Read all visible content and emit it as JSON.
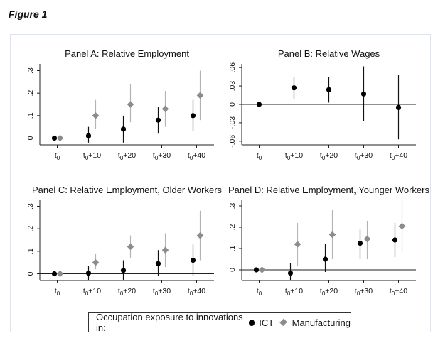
{
  "figure_title": "Figure 1",
  "legend": {
    "prefix": "Occupation exposure to innovations in:",
    "ict_label": "ICT",
    "manufacturing_label": "Manufacturing"
  },
  "colors": {
    "ict": "#000000",
    "manufacturing": "#8c8c8c",
    "ict_ci": "#111111",
    "manufacturing_ci": "#b4b4b4"
  },
  "chart_data": [
    {
      "type": "scatter",
      "title": "Panel A: Relative Employment",
      "categories": [
        "t0",
        "t0+10",
        "t0+20",
        "t0+30",
        "t0+40"
      ],
      "ylim": [
        -0.03,
        0.33
      ],
      "yticks": [
        0,
        0.1,
        0.2,
        0.3
      ],
      "ytick_labels": [
        "0",
        ".1",
        ".2",
        ".3"
      ],
      "series": [
        {
          "name": "ICT",
          "values": [
            0.0,
            0.01,
            0.04,
            0.08,
            0.1
          ],
          "ci_low": [
            0.0,
            -0.02,
            -0.02,
            0.02,
            0.03
          ],
          "ci_high": [
            0.0,
            0.05,
            0.1,
            0.14,
            0.17
          ]
        },
        {
          "name": "Manufacturing",
          "values": [
            0.0,
            0.1,
            0.15,
            0.13,
            0.19
          ],
          "ci_low": [
            0.0,
            0.04,
            0.07,
            0.05,
            0.08
          ],
          "ci_high": [
            0.0,
            0.17,
            0.24,
            0.21,
            0.3
          ]
        }
      ]
    },
    {
      "type": "scatter",
      "title": "Panel B: Relative Wages",
      "categories": [
        "t0",
        "t0+10",
        "t0+20",
        "t0+30",
        "t0+40"
      ],
      "ylim": [
        -0.066,
        0.066
      ],
      "yticks": [
        -0.06,
        -0.03,
        0,
        0.03,
        0.06
      ],
      "ytick_labels": [
        "-.06",
        "-.03",
        "0",
        ".03",
        ".06"
      ],
      "series": [
        {
          "name": "ICT",
          "values": [
            0.0,
            0.027,
            0.024,
            0.017,
            -0.005
          ],
          "ci_low": [
            0.0,
            0.009,
            0.003,
            -0.027,
            -0.057
          ],
          "ci_high": [
            0.0,
            0.044,
            0.045,
            0.062,
            0.048
          ]
        }
      ]
    },
    {
      "type": "scatter",
      "title": "Panel C: Relative Employment, Older Workers",
      "categories": [
        "t0",
        "t0+10",
        "t0+20",
        "t0+30",
        "t0+40"
      ],
      "ylim": [
        -0.03,
        0.33
      ],
      "yticks": [
        0,
        0.1,
        0.2,
        0.3
      ],
      "ytick_labels": [
        "0",
        ".1",
        ".2",
        ".3"
      ],
      "series": [
        {
          "name": "ICT",
          "values": [
            0.0,
            0.003,
            0.015,
            0.045,
            0.06
          ],
          "ci_low": [
            0.0,
            -0.03,
            -0.03,
            -0.01,
            -0.01
          ],
          "ci_high": [
            0.0,
            0.035,
            0.06,
            0.105,
            0.13
          ]
        },
        {
          "name": "Manufacturing",
          "values": [
            0.0,
            0.05,
            0.12,
            0.105,
            0.17
          ],
          "ci_low": [
            0.0,
            0.02,
            0.07,
            0.03,
            0.06
          ],
          "ci_high": [
            0.0,
            0.09,
            0.17,
            0.18,
            0.28
          ]
        }
      ]
    },
    {
      "type": "scatter",
      "title": "Panel D: Relative Employment, Younger Workers",
      "categories": [
        "t0",
        "t0+10",
        "t0+20",
        "t0+30",
        "t0+40"
      ],
      "ylim": [
        -0.05,
        0.33
      ],
      "yticks": [
        0,
        0.1,
        0.2,
        0.3
      ],
      "ytick_labels": [
        "0",
        ".1",
        ".2",
        ".3"
      ],
      "series": [
        {
          "name": "ICT",
          "values": [
            0.0,
            -0.015,
            0.05,
            0.125,
            0.14
          ],
          "ci_low": [
            0.0,
            -0.05,
            -0.01,
            0.05,
            0.06
          ],
          "ci_high": [
            0.0,
            0.03,
            0.12,
            0.19,
            0.22
          ]
        },
        {
          "name": "Manufacturing",
          "values": [
            0.0,
            0.12,
            0.165,
            0.145,
            0.205
          ],
          "ci_low": [
            0.0,
            0.02,
            0.05,
            0.05,
            0.08
          ],
          "ci_high": [
            0.0,
            0.22,
            0.28,
            0.23,
            0.33
          ]
        }
      ]
    }
  ]
}
